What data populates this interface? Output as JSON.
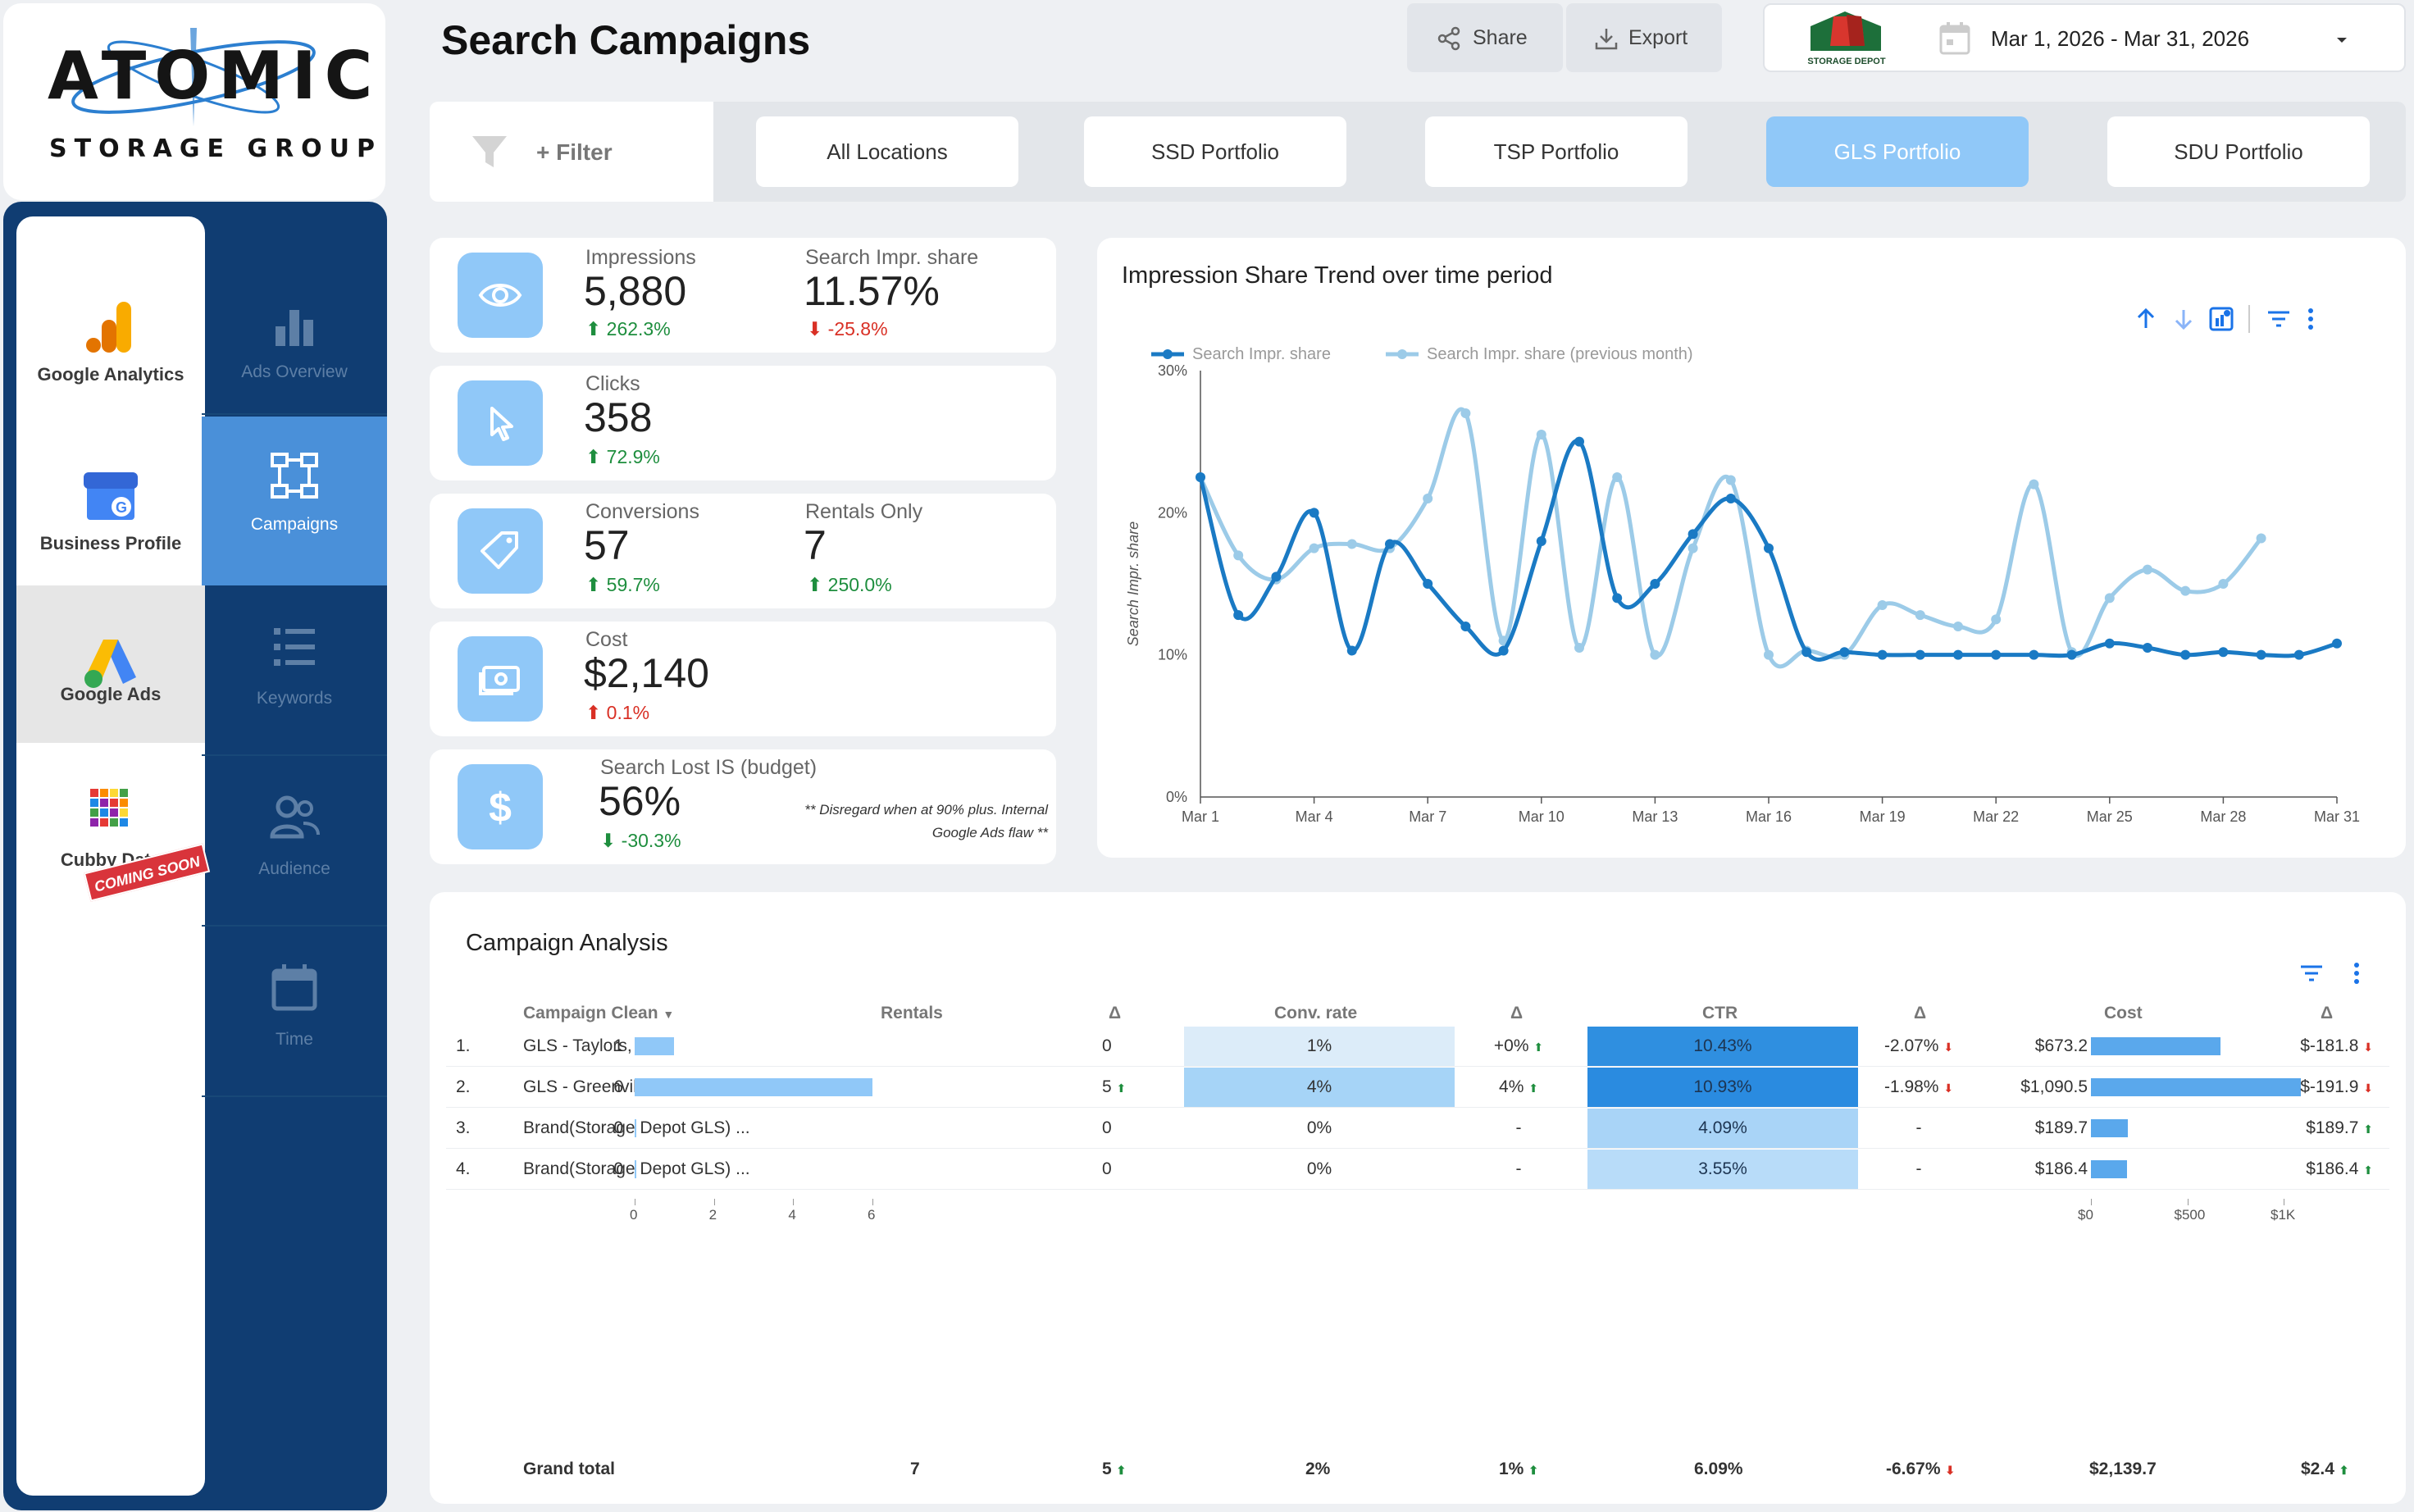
{
  "brand": {
    "logo_word": "ATOMIC",
    "logo_sub": "STORAGE GROUP",
    "client_logo_text": "STORAGE DEPOT"
  },
  "header": {
    "title": "Search Campaigns",
    "share_label": "Share",
    "export_label": "Export",
    "date_range": "Mar 1, 2026 - Mar 31, 2026"
  },
  "sidebar": {
    "brands": [
      {
        "label": "Google Analytics",
        "icon": "google-analytics-icon"
      },
      {
        "label": "Business Profile",
        "icon": "business-profile-icon"
      },
      {
        "label": "Google Ads",
        "icon": "google-ads-icon"
      },
      {
        "label": "Cubby Data",
        "icon": "cubby-data-icon"
      }
    ],
    "coming_soon": "COMING SOON",
    "nav": [
      {
        "label": "Ads Overview",
        "icon": "bar-chart-icon"
      },
      {
        "label": "Campaigns",
        "icon": "sitemap-icon"
      },
      {
        "label": "Keywords",
        "icon": "list-icon"
      },
      {
        "label": "Audience",
        "icon": "people-icon"
      },
      {
        "label": "Time",
        "icon": "calendar-icon"
      }
    ]
  },
  "filters": {
    "filter_label": "+ Filter",
    "tabs": [
      "All Locations",
      "SSD Portfolio",
      "TSP Portfolio",
      "GLS Portfolio",
      "SDU Portfolio"
    ],
    "active_tab": "GLS Portfolio"
  },
  "kpis": {
    "impressions": {
      "label": "Impressions",
      "value": "5,880",
      "change": "262.3%"
    },
    "search_impr_share": {
      "label": "Search Impr. share",
      "value": "11.57%",
      "change": "-25.8%"
    },
    "clicks": {
      "label": "Clicks",
      "value": "358",
      "change": "72.9%"
    },
    "conversions": {
      "label": "Conversions",
      "value": "57",
      "change": "59.7%"
    },
    "rentals_only": {
      "label": "Rentals Only",
      "value": "7",
      "change": "250.0%"
    },
    "cost": {
      "label": "Cost",
      "value": "$2,140",
      "change": "0.1%"
    },
    "search_lost_is": {
      "label": "Search Lost IS (budget)",
      "value": "56%",
      "change": "-30.3%"
    },
    "note_line1": "** Disregard when at 90% plus. Internal",
    "note_line2": "Google Ads flaw **"
  },
  "chart_data": {
    "type": "line",
    "title": "Impression Share Trend over time period",
    "ylabel": "Search Impr. share",
    "ylim": [
      0,
      30
    ],
    "yticks": [
      "0%",
      "10%",
      "20%",
      "30%"
    ],
    "xticks": [
      "Mar 1",
      "Mar 4",
      "Mar 7",
      "Mar 10",
      "Mar 13",
      "Mar 16",
      "Mar 19",
      "Mar 22",
      "Mar 25",
      "Mar 28",
      "Mar 31"
    ],
    "colors": {
      "current": "#1a7ac4",
      "previous": "#9ccbe8"
    },
    "series": [
      {
        "name": "Search Impr. share",
        "values": [
          22.5,
          12.8,
          15.5,
          20,
          10.3,
          17.8,
          15,
          12,
          10.3,
          18,
          25,
          14,
          15,
          18.5,
          21,
          17.5,
          10.2,
          10.2,
          10,
          10,
          10,
          10,
          10,
          10,
          10.8,
          10.5,
          10,
          10.2,
          10,
          10,
          10.8
        ]
      },
      {
        "name": "Search Impr. share (previous month)",
        "values": [
          22.5,
          17,
          15.3,
          17.5,
          17.8,
          17.5,
          21,
          27,
          11,
          25.5,
          10.5,
          22.5,
          10,
          17.5,
          22.3,
          10,
          10.3,
          10,
          13.5,
          12.8,
          12,
          12.5,
          22,
          10.2,
          14,
          16,
          14.5,
          15,
          18.2
        ]
      }
    ]
  },
  "table": {
    "title": "Campaign Analysis",
    "headers": [
      "Campaign Clean",
      "Rentals",
      "Δ",
      "Conv. rate",
      "Δ",
      "CTR",
      "Δ",
      "Cost",
      "Δ"
    ],
    "rows": [
      {
        "idx": "1.",
        "name": "GLS - Taylors, SC",
        "rentals": 1,
        "rentals_d": "0",
        "conv": "1%",
        "conv_d": "+0%",
        "conv_dir": "up",
        "ctr": "10.43%",
        "ctr_d": "-2.07%",
        "ctr_dir": "dn",
        "cost": "$673.2",
        "cost_v": 673.2,
        "cost_d": "$-181.8",
        "cost_dir": "dn",
        "rent_dir": ""
      },
      {
        "idx": "2.",
        "name": "GLS - Greenville, SC",
        "rentals": 6,
        "rentals_d": "5",
        "conv": "4%",
        "conv_d": "4%",
        "conv_dir": "up",
        "ctr": "10.93%",
        "ctr_d": "-1.98%",
        "ctr_dir": "dn",
        "cost": "$1,090.5",
        "cost_v": 1090.5,
        "cost_d": "$-191.9",
        "cost_dir": "dn",
        "rent_dir": "up"
      },
      {
        "idx": "3.",
        "name": "Brand(Storage Depot GLS) ...",
        "rentals": 0,
        "rentals_d": "0",
        "conv": "0%",
        "conv_d": "-",
        "conv_dir": "",
        "ctr": "4.09%",
        "ctr_d": "-",
        "ctr_dir": "",
        "cost": "$189.7",
        "cost_v": 189.7,
        "cost_d": "$189.7",
        "cost_dir": "up",
        "rent_dir": ""
      },
      {
        "idx": "4.",
        "name": "Brand(Storage Depot GLS) ...",
        "rentals": 0,
        "rentals_d": "0",
        "conv": "0%",
        "conv_d": "-",
        "conv_dir": "",
        "ctr": "3.55%",
        "ctr_d": "-",
        "ctr_dir": "",
        "cost": "$186.4",
        "cost_v": 186.4,
        "cost_d": "$186.4",
        "cost_dir": "up",
        "rent_dir": ""
      }
    ],
    "rentals_axis": [
      "0",
      "2",
      "4",
      "6"
    ],
    "cost_axis": [
      "$0",
      "$500",
      "$1K"
    ],
    "grand_total": {
      "label": "Grand total",
      "rentals": "7",
      "rentals_d": "5",
      "conv": "2%",
      "conv_d": "1%",
      "ctr": "6.09%",
      "ctr_d": "-6.67%",
      "cost": "$2,139.7",
      "cost_d": "$2.4"
    }
  }
}
